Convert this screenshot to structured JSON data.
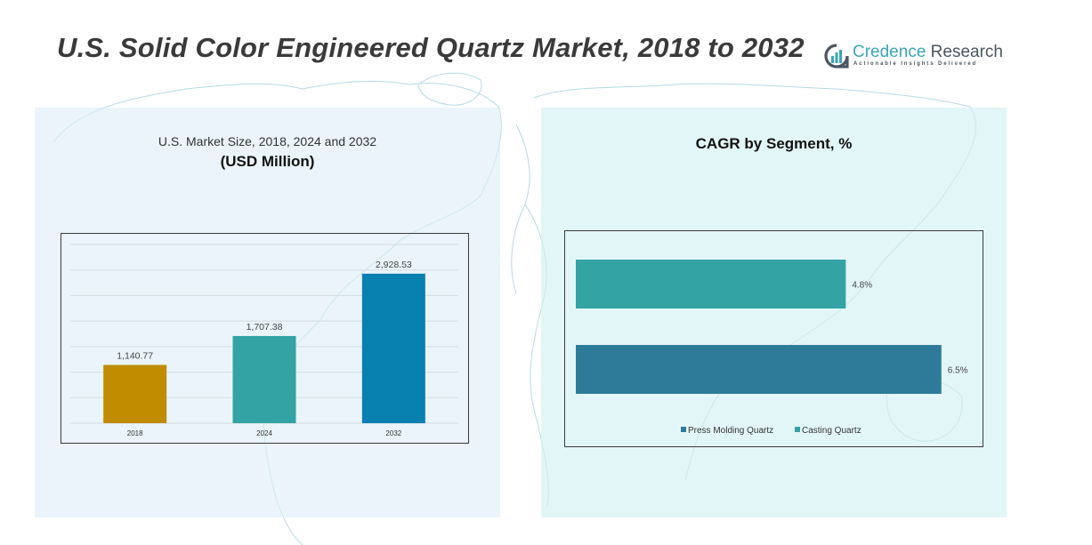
{
  "header": {
    "title": "U.S. Solid Color Engineered Quartz Market, 2018 to 2032",
    "logo": {
      "icon": "credence-logo-icon",
      "name_part1": "Credence",
      "name_part2": " Research",
      "tagline": "Actionable Insights Delivered",
      "colors": {
        "primary": "#3aa6b9",
        "secondary": "#4a5660"
      }
    }
  },
  "left_panel": {
    "subtitle": "U.S. Market Size, 2018, 2024 and 2032",
    "unit": "(USD Million)"
  },
  "right_panel": {
    "title": "CAGR by Segment, %"
  },
  "chart_data": [
    {
      "type": "bar",
      "title": "U.S. Market Size, 2018, 2024 and 2032 (USD Million)",
      "categories": [
        "2018",
        "2024",
        "2032"
      ],
      "values": [
        1140.77,
        1707.38,
        2928.53
      ],
      "data_labels": [
        "1,140.77",
        "1,707.38",
        "2,928.53"
      ],
      "colors": [
        "#c08c00",
        "#33a3a3",
        "#0880b0"
      ],
      "xlabel": "",
      "ylabel": "",
      "ylim": [
        0,
        3500
      ],
      "grid_step": 500,
      "grid": true,
      "legend": "none"
    },
    {
      "type": "bar",
      "orientation": "horizontal",
      "title": "CAGR by Segment, %",
      "categories": [
        "Casting Quartz",
        "Press Molding Quartz"
      ],
      "values": [
        4.8,
        6.5
      ],
      "data_labels": [
        "4.8%",
        "6.5%"
      ],
      "colors": [
        "#33a3a3",
        "#2e7b99"
      ],
      "xlim": [
        0,
        7.2
      ],
      "grid": false,
      "legend": "bottom",
      "legend_entries": [
        {
          "label": "Press Molding Quartz",
          "color": "#2e7b99"
        },
        {
          "label": "Casting Quartz",
          "color": "#33a3a3"
        }
      ]
    }
  ]
}
